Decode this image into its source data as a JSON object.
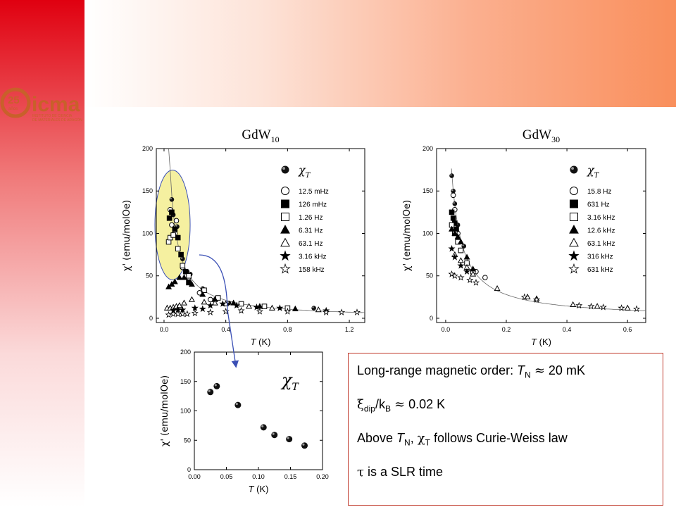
{
  "logo": {
    "number": "25",
    "small_text": "años",
    "name": "icma",
    "line1": "INSTITUTO DE CIENCIA",
    "line2": "DE MATERIALES DE ARAGÓN"
  },
  "colors": {
    "red": "#e00010",
    "orange": "#f98f5c",
    "highlight_fill": "#f5f0a0",
    "arrow": "#3a4fb5",
    "box_border": "#c0392b"
  },
  "info_box": {
    "line1": {
      "text": "Long-range magnetic order: ",
      "T": "T",
      "N": "N",
      "rest": " 20 mK",
      "approx": "≈"
    },
    "line2": {
      "xi": "ξ",
      "dip": "dip",
      "slash": "/k",
      "B": "B",
      "approx": "≈",
      "rest": " 0.02 K"
    },
    "line3": {
      "pre": "Above ",
      "T": "T",
      "N": "N",
      "comma": ", ",
      "chi": "χ",
      "Tsub": "T",
      "rest": " follows Curie-Weiss law"
    },
    "line4": {
      "tau": "τ",
      "rest": " is a SLR time"
    }
  },
  "chart_data": [
    {
      "type": "scatter",
      "title": "GdW",
      "title_sub": "10",
      "xlabel_T": "T",
      "xlabel_unit": " (K)",
      "ylabel": "χ' (emu/molOe)",
      "xlim": [
        -0.05,
        1.3
      ],
      "ylim": [
        -5,
        200
      ],
      "xticks": [
        0.0,
        0.4,
        0.8,
        1.2
      ],
      "xticklabels": [
        "0.0",
        "0.4",
        "0.8",
        "1.2"
      ],
      "yticks": [
        0,
        50,
        100,
        150,
        200
      ],
      "legend": [
        "χT",
        "12.5 mHz",
        "126 mHz",
        "1.26 Hz",
        "6.31 Hz",
        "63.1 Hz",
        "3.16 kHz",
        "158 kHz"
      ],
      "legend_sub": "T",
      "legend_chi": "χ",
      "curve": {
        "C": 8.7,
        "theta": -0.01,
        "x_from": 0.03,
        "x_to": 1.3
      },
      "series": [
        {
          "name": "χT",
          "marker": "circle-filled",
          "points": [
            [
              0.05,
              140
            ],
            [
              0.06,
              122
            ],
            [
              0.085,
              108
            ],
            [
              0.12,
              70
            ],
            [
              0.15,
              55
            ],
            [
              0.17,
              52
            ],
            [
              0.25,
              35
            ],
            [
              0.33,
              22
            ],
            [
              0.42,
              18
            ],
            [
              0.97,
              12
            ]
          ]
        },
        {
          "name": "12.5 mHz",
          "marker": "circle-open",
          "points": [
            [
              0.04,
              128
            ],
            [
              0.05,
              110
            ],
            [
              0.07,
              100
            ],
            [
              0.08,
              115
            ],
            [
              0.12,
              60
            ],
            [
              0.16,
              48
            ],
            [
              0.23,
              30
            ],
            [
              0.3,
              22
            ]
          ]
        },
        {
          "name": "126 mHz",
          "marker": "square-filled",
          "points": [
            [
              0.035,
              118
            ],
            [
              0.05,
              125
            ],
            [
              0.07,
              105
            ],
            [
              0.09,
              95
            ],
            [
              0.11,
              75
            ],
            [
              0.14,
              55
            ],
            [
              0.16,
              42
            ]
          ]
        },
        {
          "name": "1.26 Hz",
          "marker": "square-open",
          "points": [
            [
              0.03,
              90
            ],
            [
              0.04,
              95
            ],
            [
              0.06,
              98
            ],
            [
              0.09,
              82
            ],
            [
              0.12,
              62
            ],
            [
              0.16,
              50
            ],
            [
              0.26,
              33
            ],
            [
              0.35,
              24
            ],
            [
              0.5,
              17
            ],
            [
              0.65,
              14
            ],
            [
              0.8,
              12
            ]
          ]
        },
        {
          "name": "6.31 Hz",
          "marker": "triangle-filled",
          "points": [
            [
              0.03,
              37
            ],
            [
              0.05,
              40
            ],
            [
              0.07,
              43
            ],
            [
              0.1,
              48
            ],
            [
              0.13,
              48
            ],
            [
              0.18,
              40
            ],
            [
              0.25,
              28
            ],
            [
              0.33,
              22
            ],
            [
              0.45,
              18
            ],
            [
              0.62,
              14
            ],
            [
              0.85,
              11
            ]
          ]
        },
        {
          "name": "63.1 Hz",
          "marker": "triangle-open",
          "points": [
            [
              0.02,
              12
            ],
            [
              0.04,
              12
            ],
            [
              0.06,
              13
            ],
            [
              0.08,
              14
            ],
            [
              0.1,
              15
            ],
            [
              0.13,
              18
            ],
            [
              0.18,
              22
            ],
            [
              0.26,
              19
            ],
            [
              0.33,
              18
            ],
            [
              0.4,
              17
            ],
            [
              0.55,
              14
            ],
            [
              0.7,
              12
            ],
            [
              1.0,
              10
            ]
          ]
        },
        {
          "name": "3.16 kHz",
          "marker": "star-filled",
          "points": [
            [
              0.06,
              9
            ],
            [
              0.09,
              10
            ],
            [
              0.12,
              10
            ],
            [
              0.2,
              12
            ],
            [
              0.25,
              11
            ],
            [
              0.3,
              15
            ],
            [
              0.38,
              17
            ],
            [
              0.47,
              15
            ],
            [
              0.6,
              13
            ],
            [
              0.75,
              12
            ],
            [
              1.05,
              9
            ]
          ]
        },
        {
          "name": "158 kHz",
          "marker": "star-open",
          "points": [
            [
              0.03,
              4
            ],
            [
              0.06,
              5
            ],
            [
              0.09,
              5
            ],
            [
              0.12,
              5
            ],
            [
              0.15,
              5
            ],
            [
              0.2,
              6
            ],
            [
              0.3,
              7
            ],
            [
              0.4,
              8
            ],
            [
              0.5,
              9
            ],
            [
              0.62,
              8
            ],
            [
              0.8,
              8
            ],
            [
              1.05,
              7
            ],
            [
              1.15,
              7
            ],
            [
              1.25,
              7
            ]
          ]
        }
      ]
    },
    {
      "type": "scatter",
      "title": "GdW",
      "title_sub": "30",
      "xlabel_T": "T",
      "xlabel_unit": " (K)",
      "ylabel": "χ' (emu/molOe)",
      "xlim": [
        -0.03,
        0.66
      ],
      "ylim": [
        -5,
        200
      ],
      "xticks": [
        0.0,
        0.2,
        0.4,
        0.6
      ],
      "xticklabels": [
        "0.0",
        "0.2",
        "0.4",
        "0.6"
      ],
      "yticks": [
        0,
        50,
        100,
        150,
        200
      ],
      "legend": [
        "χT",
        "15.8 Hz",
        "631 Hz",
        "3.16 kHz",
        "12.6 kHz",
        "63.1 kHz",
        "316 kHz",
        "631 kHz"
      ],
      "legend_sub": "T",
      "legend_chi": "χ",
      "curve": {
        "C": 6.0,
        "theta": -0.015,
        "x_from": 0.019,
        "x_to": 0.66
      },
      "series": [
        {
          "name": "χT",
          "marker": "circle-filled",
          "points": [
            [
              0.02,
              168
            ],
            [
              0.025,
              150
            ],
            [
              0.03,
              135
            ],
            [
              0.04,
              110
            ],
            [
              0.06,
              85
            ]
          ]
        },
        {
          "name": "15.8 Hz",
          "marker": "circle-open",
          "points": [
            [
              0.025,
              145
            ],
            [
              0.03,
              128
            ],
            [
              0.04,
              100
            ],
            [
              0.05,
              80
            ],
            [
              0.07,
              65
            ],
            [
              0.1,
              55
            ],
            [
              0.13,
              48
            ]
          ]
        },
        {
          "name": "631 Hz",
          "marker": "square-filled",
          "points": [
            [
              0.02,
              125
            ],
            [
              0.025,
              118
            ],
            [
              0.03,
              112
            ],
            [
              0.035,
              105
            ]
          ]
        },
        {
          "name": "3.16 kHz",
          "marker": "square-open",
          "points": [
            [
              0.02,
              110
            ],
            [
              0.03,
              100
            ],
            [
              0.04,
              90
            ],
            [
              0.05,
              80
            ],
            [
              0.07,
              65
            ],
            [
              0.09,
              55
            ]
          ]
        },
        {
          "name": "12.6 kHz",
          "marker": "triangle-filled",
          "points": [
            [
              0.02,
              105
            ],
            [
              0.03,
              100
            ],
            [
              0.04,
              96
            ],
            [
              0.05,
              90
            ],
            [
              0.07,
              72
            ],
            [
              0.09,
              58
            ]
          ]
        },
        {
          "name": "63.1 kHz",
          "marker": "triangle-open",
          "points": [
            [
              0.03,
              75
            ],
            [
              0.05,
              68
            ],
            [
              0.07,
              60
            ],
            [
              0.09,
              52
            ],
            [
              0.17,
              35
            ],
            [
              0.27,
              25
            ],
            [
              0.3,
              23
            ],
            [
              0.42,
              16
            ],
            [
              0.5,
              14
            ],
            [
              0.6,
              12
            ]
          ]
        },
        {
          "name": "316 kHz",
          "marker": "star-filled",
          "points": [
            [
              0.02,
              82
            ],
            [
              0.03,
              72
            ],
            [
              0.05,
              62
            ],
            [
              0.07,
              55
            ]
          ]
        },
        {
          "name": "631 kHz",
          "marker": "star-open",
          "points": [
            [
              0.02,
              52
            ],
            [
              0.03,
              50
            ],
            [
              0.05,
              48
            ],
            [
              0.08,
              45
            ],
            [
              0.1,
              42
            ],
            [
              0.26,
              25
            ],
            [
              0.3,
              22
            ],
            [
              0.44,
              15
            ],
            [
              0.48,
              14
            ],
            [
              0.52,
              13
            ],
            [
              0.58,
              12
            ],
            [
              0.63,
              11
            ]
          ]
        }
      ]
    },
    {
      "type": "scatter",
      "title": "",
      "xlabel_T": "T",
      "xlabel_unit": " (K)",
      "ylabel": "χ' (emu/molOe)",
      "xlim": [
        0.0,
        0.2
      ],
      "ylim": [
        0,
        200
      ],
      "xticks": [
        0.0,
        0.05,
        0.1,
        0.15,
        0.2
      ],
      "xticklabels": [
        "0.00",
        "0.05",
        "0.10",
        "0.15",
        "0.20"
      ],
      "yticks": [
        0,
        50,
        100,
        150,
        200
      ],
      "legend_chi": "χ",
      "legend_sub": "T",
      "series": [
        {
          "name": "χT",
          "marker": "circle-filled",
          "points": [
            [
              0.025,
              132
            ],
            [
              0.035,
              142
            ],
            [
              0.068,
              110
            ],
            [
              0.108,
              72
            ],
            [
              0.125,
              59
            ],
            [
              0.148,
              52
            ],
            [
              0.172,
              41
            ]
          ]
        }
      ]
    }
  ]
}
